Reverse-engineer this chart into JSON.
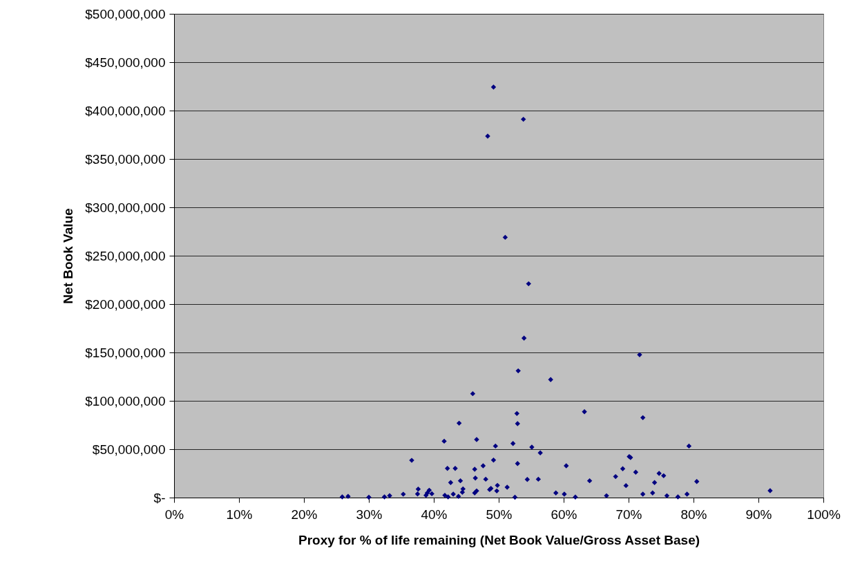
{
  "chart_data": {
    "type": "scatter",
    "xlabel": "Proxy for % of life remaining (Net Book Value/Gross Asset Base)",
    "ylabel": "Net Book Value",
    "xlim": [
      0,
      100
    ],
    "xticks": [
      {
        "value": 0,
        "label": "0%"
      },
      {
        "value": 10,
        "label": "10%"
      },
      {
        "value": 20,
        "label": "20%"
      },
      {
        "value": 30,
        "label": "30%"
      },
      {
        "value": 40,
        "label": "40%"
      },
      {
        "value": 50,
        "label": "50%"
      },
      {
        "value": 60,
        "label": "60%"
      },
      {
        "value": 70,
        "label": "70%"
      },
      {
        "value": 80,
        "label": "80%"
      },
      {
        "value": 90,
        "label": "90%"
      },
      {
        "value": 100,
        "label": "100%"
      }
    ],
    "ylim": [
      0,
      500000000
    ],
    "yticks": [
      {
        "value": 0,
        "label": "$-"
      },
      {
        "value": 50000000,
        "label": "$50,000,000"
      },
      {
        "value": 100000000,
        "label": "$100,000,000"
      },
      {
        "value": 150000000,
        "label": "$150,000,000"
      },
      {
        "value": 200000000,
        "label": "$200,000,000"
      },
      {
        "value": 250000000,
        "label": "$250,000,000"
      },
      {
        "value": 300000000,
        "label": "$300,000,000"
      },
      {
        "value": 350000000,
        "label": "$350,000,000"
      },
      {
        "value": 400000000,
        "label": "$400,000,000"
      },
      {
        "value": 450000000,
        "label": "$450,000,000"
      },
      {
        "value": 500000000,
        "label": "$500,000,000"
      }
    ],
    "grid": "y",
    "marker": "diamond",
    "legend": false,
    "series": [
      {
        "color": "#000080",
        "x": [
          25.9,
          26.8,
          30.0,
          32.4,
          33.2,
          35.3,
          36.6,
          37.6,
          37.5,
          38.8,
          39.3,
          39.7,
          39.0,
          41.6,
          46.0,
          53.0,
          58.0,
          41.7,
          42.2,
          43.0,
          43.8,
          42.1,
          43.3,
          42.6,
          43.9,
          44.1,
          44.5,
          44.4,
          46.3,
          46.6,
          46.3,
          46.4,
          46.6,
          47.6,
          48.0,
          48.6,
          48.8,
          49.7,
          49.8,
          49.2,
          49.5,
          51.3,
          52.2,
          52.5,
          52.8,
          52.9,
          52.9,
          54.4,
          55.1,
          56.1,
          56.4,
          58.8,
          60.1,
          60.4,
          61.8,
          63.2,
          64.0,
          66.6,
          68.0,
          69.1,
          69.6,
          70.1,
          70.3,
          71.1,
          72.2,
          72.2,
          73.7,
          74.0,
          74.7,
          75.4,
          75.9,
          77.6,
          79.0,
          79.3,
          80.5,
          91.8,
          49.2,
          53.8,
          48.3,
          51.0,
          54.6,
          53.9,
          71.7
        ],
        "values": [
          700000,
          1200000,
          300000,
          700000,
          2000000,
          3500000,
          38500000,
          8800000,
          3800000,
          2400000,
          7600000,
          4000000,
          4800000,
          58300000,
          107400000,
          131000000,
          122000000,
          2400000,
          700000,
          3600000,
          1200000,
          30200000,
          30200000,
          15500000,
          76900000,
          17400000,
          9000000,
          5500000,
          4800000,
          6900000,
          29300000,
          20200000,
          60000000,
          32900000,
          19000000,
          8300000,
          9500000,
          6900000,
          12600000,
          38800000,
          53300000,
          10700000,
          55900000,
          300000,
          86900000,
          76400000,
          35200000,
          18800000,
          52100000,
          19000000,
          46200000,
          4800000,
          3600000,
          32900000,
          500000,
          88800000,
          17400000,
          1900000,
          21700000,
          29800000,
          12400000,
          42400000,
          41400000,
          26200000,
          82600000,
          3600000,
          4800000,
          15500000,
          25000000,
          22600000,
          1900000,
          700000,
          3600000,
          53300000,
          16600000,
          7100000,
          424300000,
          391000000,
          373600000,
          269000000,
          221000000,
          164800000,
          147600000
        ]
      }
    ]
  }
}
